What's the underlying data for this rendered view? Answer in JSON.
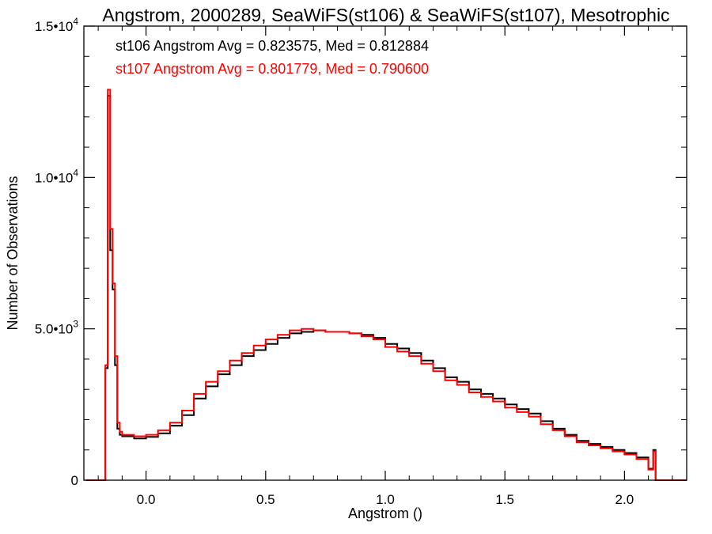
{
  "chart_data": {
    "type": "line",
    "title": "Angstrom, 2000289, SeaWiFS(st106) & SeaWiFS(st107), Mesotrophic",
    "xlabel": "Angstrom ()",
    "ylabel": "Number of Observations",
    "xlim": [
      -0.26,
      2.26
    ],
    "ylim": [
      0,
      15000
    ],
    "x_ticks": [
      {
        "value": 0.0,
        "label": "0.0"
      },
      {
        "value": 0.5,
        "label": "0.5"
      },
      {
        "value": 1.0,
        "label": "1.0"
      },
      {
        "value": 1.5,
        "label": "1.5"
      },
      {
        "value": 2.0,
        "label": "2.0"
      }
    ],
    "y_ticks": [
      {
        "value": 0,
        "mantissa": "0",
        "exponent": ""
      },
      {
        "value": 5000,
        "mantissa": "5.0•10",
        "exponent": "3"
      },
      {
        "value": 10000,
        "mantissa": "1.0•10",
        "exponent": "4"
      },
      {
        "value": 15000,
        "mantissa": "1.5•10",
        "exponent": "4"
      }
    ],
    "grid": false,
    "step": true,
    "x": [
      -0.25,
      -0.2,
      -0.18,
      -0.17,
      -0.16,
      -0.15,
      -0.14,
      -0.13,
      -0.12,
      -0.11,
      -0.1,
      -0.05,
      0.0,
      0.05,
      0.1,
      0.15,
      0.2,
      0.25,
      0.3,
      0.35,
      0.4,
      0.45,
      0.5,
      0.55,
      0.6,
      0.65,
      0.7,
      0.75,
      0.8,
      0.85,
      0.9,
      0.95,
      1.0,
      1.05,
      1.1,
      1.15,
      1.2,
      1.25,
      1.3,
      1.35,
      1.4,
      1.45,
      1.5,
      1.55,
      1.6,
      1.65,
      1.7,
      1.75,
      1.8,
      1.85,
      1.9,
      1.95,
      2.0,
      2.05,
      2.1,
      2.12,
      2.13,
      2.14,
      2.15,
      2.2,
      2.26
    ],
    "series": [
      {
        "name": "st106",
        "color": "#000000",
        "annotation": "st106 Angstrom Avg = 0.823575, Med = 0.812884",
        "values": [
          0,
          0,
          0,
          3700,
          12700,
          7600,
          6300,
          3800,
          1700,
          1500,
          1450,
          1380,
          1430,
          1550,
          1800,
          2150,
          2700,
          3100,
          3500,
          3800,
          4100,
          4300,
          4500,
          4700,
          4850,
          4900,
          4950,
          4900,
          4900,
          4850,
          4800,
          4700,
          4500,
          4350,
          4200,
          3950,
          3700,
          3400,
          3250,
          3000,
          2850,
          2700,
          2500,
          2350,
          2200,
          1950,
          1700,
          1500,
          1300,
          1200,
          1100,
          1000,
          900,
          750,
          380,
          1000,
          0,
          0,
          0,
          0,
          0
        ]
      },
      {
        "name": "st107",
        "color": "#ff0000",
        "annotation": "st107 Angstrom Avg = 0.801779, Med = 0.790600",
        "values": [
          0,
          0,
          0,
          3800,
          12900,
          8300,
          6500,
          4100,
          1900,
          1600,
          1500,
          1450,
          1500,
          1650,
          1900,
          2300,
          2850,
          3250,
          3600,
          3950,
          4200,
          4450,
          4650,
          4800,
          4950,
          5000,
          4950,
          4900,
          4900,
          4850,
          4750,
          4650,
          4400,
          4250,
          4100,
          3850,
          3600,
          3300,
          3150,
          2900,
          2750,
          2600,
          2400,
          2250,
          2100,
          1850,
          1650,
          1450,
          1250,
          1150,
          1050,
          950,
          850,
          700,
          350,
          950,
          0,
          0,
          0,
          0,
          0
        ]
      }
    ]
  }
}
